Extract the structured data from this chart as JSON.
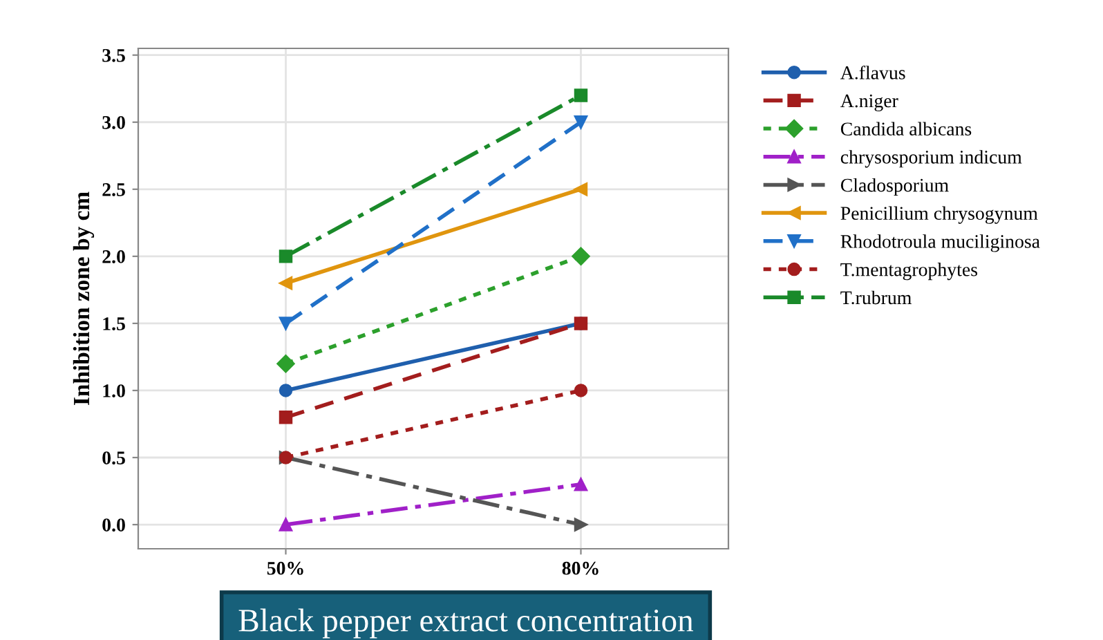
{
  "chart_data": {
    "type": "line",
    "xlabel": "Black pepper extract concentration",
    "ylabel": "Inhibition zone by cm",
    "categories": [
      "50%",
      "80%"
    ],
    "ylim": [
      -0.18,
      3.55
    ],
    "yticks": [
      {
        "value": 0,
        "label": "0.0"
      },
      0.5,
      {
        "value": 1,
        "label": "1.0"
      },
      1.5,
      {
        "value": 2,
        "label": "2.0"
      },
      2.5,
      {
        "value": 3,
        "label": "3.0"
      },
      3.5
    ],
    "grid": true,
    "legend": "right",
    "series": [
      {
        "name": "A.flavus",
        "color": "#1f5fad",
        "marker": "circle",
        "line_style": "solid",
        "values": [
          1.0,
          1.5
        ]
      },
      {
        "name": "A.niger",
        "color": "#a31d1d",
        "marker": "square",
        "line_style": "dashed",
        "values": [
          0.8,
          1.5
        ]
      },
      {
        "name": "Candida albicans",
        "color": "#2ca02c",
        "marker": "diamond",
        "line_style": "dotted",
        "values": [
          1.2,
          2.0
        ]
      },
      {
        "name": "chrysosporium indicum",
        "color": "#a020c8",
        "marker": "triangle",
        "line_style": "dashdot",
        "values": [
          0.0,
          0.3
        ]
      },
      {
        "name": "Cladosporium",
        "color": "#555555",
        "marker": "triangle_right",
        "line_style": "dashdot",
        "values": [
          0.5,
          0.0
        ]
      },
      {
        "name": "Penicillium chrysogynum",
        "color": "#e0950e",
        "marker": "triangle_left",
        "line_style": "solid",
        "values": [
          1.8,
          2.5
        ]
      },
      {
        "name": "Rhodotroula muciliginosa",
        "color": "#2070c8",
        "marker": "triangle_down",
        "line_style": "dashed",
        "values": [
          1.5,
          3.0
        ]
      },
      {
        "name": "T.mentagrophytes",
        "color": "#a31d1d",
        "marker": "circle",
        "line_style": "dotted",
        "values": [
          0.5,
          1.0
        ]
      },
      {
        "name": "T.rubrum",
        "color": "#1a8a2a",
        "marker": "square",
        "line_style": "dashdot",
        "values": [
          2.0,
          3.2
        ]
      }
    ]
  }
}
